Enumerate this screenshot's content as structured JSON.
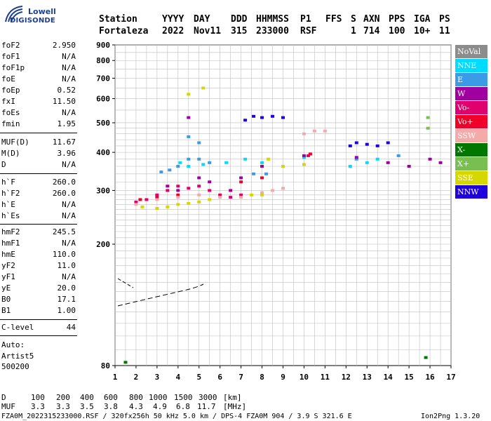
{
  "logo": {
    "line1": "Lowell",
    "line2": "DIGISONDE"
  },
  "header": {
    "row1": [
      "Station",
      "YYYY",
      "DAY",
      "DDD",
      "HHMMSS",
      "P1",
      "FFS",
      "S",
      "AXN",
      "PPS",
      "IGA",
      "PS"
    ],
    "row2": [
      "Fortaleza",
      "2022",
      "Nov11",
      "315",
      "233000",
      "RSF",
      "1",
      "714",
      "100",
      "10+",
      "11"
    ]
  },
  "params": [
    {
      "label": "foF2",
      "value": "2.950"
    },
    {
      "label": "foF1",
      "value": "N/A"
    },
    {
      "label": "foF1p",
      "value": "N/A"
    },
    {
      "label": "foE",
      "value": "N/A"
    },
    {
      "label": "foEp",
      "value": "0.52"
    },
    {
      "label": "fxI",
      "value": "11.50"
    },
    {
      "label": "foEs",
      "value": "N/A"
    },
    {
      "label": "fmin",
      "value": "1.95"
    },
    {
      "label": "MUF(D)",
      "value": "11.67"
    },
    {
      "label": "M(D)",
      "value": "3.96"
    },
    {
      "label": "D",
      "value": "N/A"
    },
    {
      "label": "h`F",
      "value": "260.0"
    },
    {
      "label": "h`F2",
      "value": "260.0"
    },
    {
      "label": "h`E",
      "value": "N/A"
    },
    {
      "label": "h`Es",
      "value": "N/A"
    },
    {
      "label": "hmF2",
      "value": "245.5"
    },
    {
      "label": "hmF1",
      "value": "N/A"
    },
    {
      "label": "hmE",
      "value": "110.0"
    },
    {
      "label": "yF2",
      "value": "11.0"
    },
    {
      "label": "yF1",
      "value": "N/A"
    },
    {
      "label": "yE",
      "value": "20.0"
    },
    {
      "label": "B0",
      "value": "17.1"
    },
    {
      "label": "B1",
      "value": "1.00"
    },
    {
      "label": "C-level",
      "value": "44"
    }
  ],
  "auto": {
    "line1": "Auto:",
    "line2": "Artist5",
    "line3": "500200"
  },
  "legend": [
    {
      "label": "NoVal",
      "color": "#8c8c8c"
    },
    {
      "label": "NNE",
      "color": "#00dcff"
    },
    {
      "label": "E",
      "color": "#3c9be6"
    },
    {
      "label": "W",
      "color": "#a000a0"
    },
    {
      "label": "Vo-",
      "color": "#e0006e"
    },
    {
      "label": "Vo+",
      "color": "#f00028"
    },
    {
      "label": "SSW",
      "color": "#f5aaaa"
    },
    {
      "label": "X-",
      "color": "#007800"
    },
    {
      "label": "X+",
      "color": "#78be50"
    },
    {
      "label": "SSE",
      "color": "#d7d700"
    },
    {
      "label": "NNW",
      "color": "#1e00dc"
    }
  ],
  "chart_data": {
    "type": "scatter",
    "title": "",
    "xlabel": "",
    "ylabel": "",
    "xlim": [
      1,
      17
    ],
    "ylim": [
      80,
      900
    ],
    "x_ticks": [
      "1",
      "2",
      "3",
      "4",
      "5",
      "6",
      "7",
      "8",
      "9",
      "10",
      "11",
      "12",
      "13",
      "14",
      "15",
      "16",
      "17"
    ],
    "y_ticks": [
      "80",
      "200",
      "300",
      "400",
      "500",
      "600",
      "700",
      "800",
      "900"
    ],
    "y_scale": "log",
    "grid": true,
    "legend_position": "right",
    "series": [
      {
        "name": "NNE",
        "points": [
          [
            4.1,
            370
          ],
          [
            4.5,
            360
          ],
          [
            5.2,
            365
          ],
          [
            6.3,
            370
          ],
          [
            7.2,
            380
          ],
          [
            8.0,
            370
          ],
          [
            10.0,
            385
          ],
          [
            12.2,
            360
          ],
          [
            13.0,
            370
          ],
          [
            13.5,
            380
          ]
        ]
      },
      {
        "name": "E",
        "points": [
          [
            3.2,
            345
          ],
          [
            3.6,
            350
          ],
          [
            4.0,
            360
          ],
          [
            4.5,
            380
          ],
          [
            5.0,
            380
          ],
          [
            5.5,
            370
          ],
          [
            7.6,
            340
          ],
          [
            8.2,
            340
          ],
          [
            4.5,
            450
          ],
          [
            5.0,
            430
          ],
          [
            12.5,
            380
          ],
          [
            14.5,
            390
          ]
        ]
      },
      {
        "name": "W",
        "points": [
          [
            3.5,
            310
          ],
          [
            4.0,
            300
          ],
          [
            4.5,
            520
          ],
          [
            5.0,
            330
          ],
          [
            5.5,
            320
          ],
          [
            6.5,
            300
          ],
          [
            7.0,
            330
          ],
          [
            8.0,
            360
          ],
          [
            10.0,
            390
          ],
          [
            12.5,
            385
          ],
          [
            14.0,
            370
          ],
          [
            15.0,
            360
          ],
          [
            16.0,
            380
          ],
          [
            16.5,
            370
          ]
        ]
      },
      {
        "name": "Vo-",
        "points": [
          [
            2.0,
            275
          ],
          [
            2.5,
            280
          ],
          [
            3.0,
            290
          ],
          [
            3.5,
            300
          ],
          [
            4.0,
            310
          ],
          [
            4.5,
            305
          ],
          [
            5.0,
            310
          ],
          [
            5.5,
            300
          ],
          [
            6.0,
            290
          ],
          [
            6.5,
            285
          ],
          [
            7.0,
            290
          ],
          [
            10.2,
            390
          ]
        ]
      },
      {
        "name": "Vo+",
        "points": [
          [
            2.2,
            280
          ],
          [
            3.0,
            285
          ],
          [
            4.0,
            290
          ],
          [
            7.0,
            320
          ],
          [
            8.0,
            330
          ],
          [
            10.3,
            395
          ]
        ]
      },
      {
        "name": "SSW",
        "points": [
          [
            2.0,
            270
          ],
          [
            3.0,
            280
          ],
          [
            4.0,
            285
          ],
          [
            5.0,
            290
          ],
          [
            6.0,
            285
          ],
          [
            7.0,
            285
          ],
          [
            8.0,
            295
          ],
          [
            8.5,
            300
          ],
          [
            9.0,
            305
          ],
          [
            10.0,
            460
          ],
          [
            10.5,
            470
          ],
          [
            11.0,
            470
          ]
        ]
      },
      {
        "name": "X-",
        "points": [
          [
            1.5,
            82
          ],
          [
            15.8,
            85
          ]
        ]
      },
      {
        "name": "X+",
        "points": [
          [
            15.9,
            480
          ],
          [
            15.9,
            520
          ]
        ]
      },
      {
        "name": "SSE",
        "points": [
          [
            2.3,
            265
          ],
          [
            3.0,
            262
          ],
          [
            3.5,
            265
          ],
          [
            4.0,
            270
          ],
          [
            4.5,
            272
          ],
          [
            5.0,
            275
          ],
          [
            5.5,
            280
          ],
          [
            7.5,
            290
          ],
          [
            8.0,
            290
          ],
          [
            8.3,
            380
          ],
          [
            9.0,
            360
          ],
          [
            10.0,
            365
          ],
          [
            4.5,
            620
          ],
          [
            5.2,
            650
          ]
        ]
      },
      {
        "name": "NNW",
        "points": [
          [
            7.2,
            510
          ],
          [
            7.6,
            525
          ],
          [
            8.0,
            520
          ],
          [
            8.5,
            525
          ],
          [
            9.0,
            520
          ],
          [
            12.2,
            420
          ],
          [
            12.5,
            430
          ],
          [
            13.0,
            425
          ],
          [
            13.5,
            420
          ],
          [
            14.0,
            430
          ]
        ]
      }
    ]
  },
  "bottom": {
    "d_label": "D",
    "d_values": [
      "100",
      "200",
      "400",
      "600",
      "800",
      "1000",
      "1500",
      "3000",
      "[km]"
    ],
    "muf_label": "MUF",
    "muf_values": [
      "3.3",
      "3.3",
      "3.5",
      "3.8",
      "4.3",
      "4.9",
      "6.8",
      "11.7",
      "[MHz]"
    ],
    "footer": "FZA0M_2022315233000.RSF / 320fx256h 50 kHz 5.0 km / DPS-4 FZA0M 904 / 3.9 S 321.6 E",
    "version": "Ion2Png 1.3.20"
  }
}
